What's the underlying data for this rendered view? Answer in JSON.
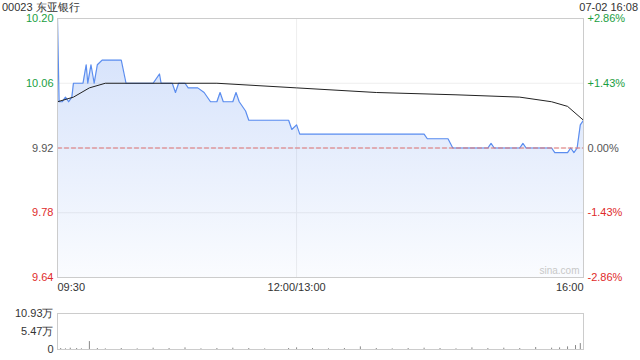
{
  "chart_data": [
    {
      "type": "line",
      "title": "00023 东亚银行",
      "subtitle": "07-02 16:08",
      "xlim": [
        0,
        330
      ],
      "xticks": [
        {
          "value": 0,
          "label": "09:30"
        },
        {
          "value": 150,
          "label": "12:00/13:00"
        },
        {
          "value": 330,
          "label": "16:00"
        }
      ],
      "ylim": [
        9.64,
        10.2
      ],
      "yticks": [
        {
          "value": 10.2,
          "label": "10.20"
        },
        10.06,
        9.92,
        9.78,
        9.64
      ],
      "y2lim": [
        -2.86,
        2.86
      ],
      "y2ticks": [
        {
          "value": 2.86,
          "label": "+2.86%"
        },
        {
          "value": 1.43,
          "label": "+1.43%"
        },
        {
          "value": 0,
          "label": "0.00%"
        },
        {
          "value": -1.43,
          "label": "-1.43%"
        },
        {
          "value": -2.86,
          "label": "-2.86%"
        }
      ],
      "grid": true,
      "annotations": [
        "sina.com"
      ],
      "series": [
        {
          "type": "area",
          "color": "#5b8def",
          "x": [
            0,
            1,
            3,
            5,
            7,
            9,
            10,
            16,
            18,
            19,
            21,
            23,
            25,
            28,
            40,
            43,
            60,
            64,
            65,
            72,
            74,
            76,
            80,
            82,
            88,
            92,
            96,
            100,
            102,
            104,
            110,
            112,
            114,
            118,
            120,
            145,
            147,
            150,
            152,
            230,
            232,
            245,
            248,
            270,
            272,
            274,
            290,
            292,
            294,
            310,
            312,
            320,
            322,
            324,
            326,
            328,
            330
          ],
          "values": [
            10.2,
            10.02,
            10.02,
            10.03,
            10.02,
            10.03,
            10.06,
            10.06,
            10.1,
            10.06,
            10.1,
            10.06,
            10.1,
            10.11,
            10.11,
            10.06,
            10.06,
            10.08,
            10.06,
            10.06,
            10.04,
            10.06,
            10.06,
            10.05,
            10.05,
            10.04,
            10.02,
            10.02,
            10.04,
            10.02,
            10.02,
            10.04,
            10.02,
            10.0,
            9.98,
            9.98,
            9.96,
            9.97,
            9.95,
            9.95,
            9.94,
            9.94,
            9.92,
            9.92,
            9.93,
            9.92,
            9.92,
            9.93,
            9.92,
            9.92,
            9.91,
            9.91,
            9.92,
            9.91,
            9.92,
            9.97,
            9.98
          ]
        },
        {
          "type": "line",
          "color": "#e07070",
          "line_style": "dashed",
          "x": [
            0,
            330
          ],
          "values": [
            9.92,
            9.92
          ]
        },
        {
          "type": "line",
          "color": "#222222",
          "x": [
            0,
            10,
            20,
            30,
            80,
            100,
            150,
            200,
            250,
            290,
            310,
            320,
            330
          ],
          "values": [
            10.02,
            10.03,
            10.05,
            10.06,
            10.06,
            10.06,
            10.05,
            10.04,
            10.035,
            10.03,
            10.02,
            10.01,
            9.98
          ]
        }
      ]
    },
    {
      "type": "bar",
      "xlim": [
        0,
        330
      ],
      "ylim": [
        0,
        10.93
      ],
      "yticks": [
        {
          "value": 10.93,
          "label": "10.93万"
        },
        {
          "value": 5.47,
          "label": "5.47万"
        },
        0
      ],
      "tick_labels": "y",
      "color": "#888888",
      "x": [
        0,
        2,
        5,
        8,
        12,
        15,
        20,
        25,
        30,
        40,
        50,
        60,
        70,
        80,
        90,
        100,
        110,
        120,
        130,
        145,
        150,
        160,
        170,
        180,
        190,
        200,
        210,
        220,
        230,
        240,
        250,
        260,
        270,
        280,
        290,
        300,
        310,
        315,
        320,
        325,
        328,
        330
      ],
      "values": [
        0.8,
        0.3,
        0.2,
        0.4,
        0.3,
        0.2,
        2.4,
        0.3,
        0.2,
        0.3,
        0.2,
        0.4,
        0.3,
        0.5,
        0.2,
        0.3,
        0.4,
        0.3,
        0.2,
        0.3,
        0.5,
        0.3,
        0.2,
        0.3,
        0.8,
        0.3,
        0.2,
        0.3,
        0.4,
        0.3,
        0.2,
        0.5,
        0.3,
        0.4,
        0.3,
        0.6,
        0.4,
        0.5,
        0.8,
        1.2,
        1.8,
        2.6
      ]
    }
  ]
}
